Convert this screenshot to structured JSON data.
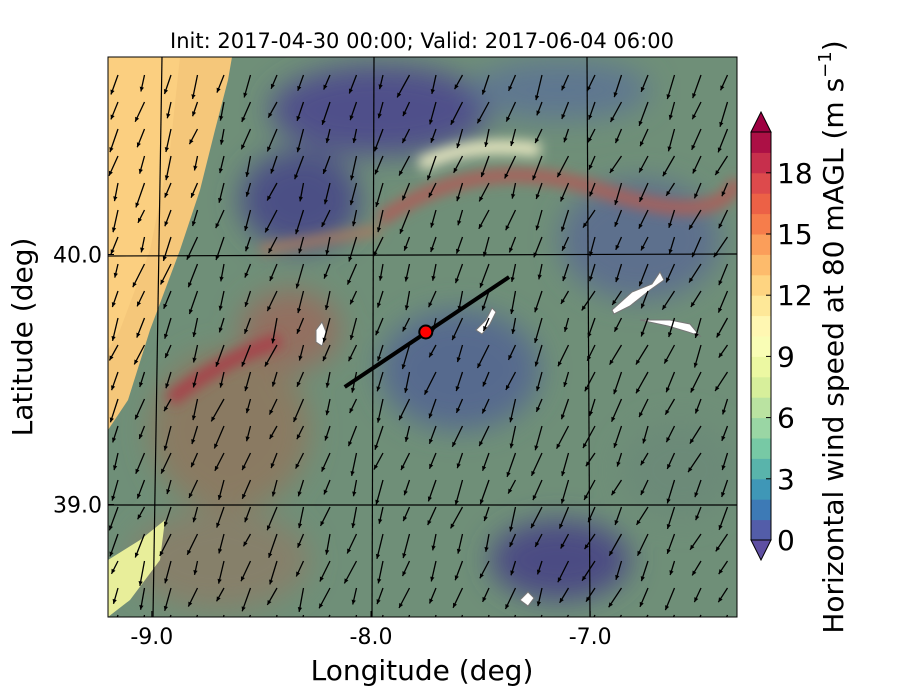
{
  "chart_data": {
    "type": "heatmap",
    "title": "Init: 2017-04-30 00:00; Valid: 2017-06-04 06:00",
    "xlabel": "Longitude (deg)",
    "ylabel": "Latitude (deg)",
    "xlim": [
      -9.2,
      -6.33
    ],
    "ylim": [
      38.55,
      40.79
    ],
    "xticks": [
      -9.0,
      -8.0,
      -7.0
    ],
    "xtick_labels": [
      "-9.0",
      "-8.0",
      "-7.0"
    ],
    "yticks": [
      39.0,
      40.0
    ],
    "ytick_labels": [
      "39.0",
      "40.0"
    ],
    "grid": true,
    "colorbar": {
      "label": "Horizontal wind speed at 80 mAGL (m s",
      "label_sup": "−1",
      "label_end": ")",
      "range": [
        0,
        20
      ],
      "levels": 20,
      "extend": "both",
      "colormap": "Spectral_r",
      "ticks": [
        0,
        3,
        6,
        9,
        12,
        15,
        18
      ],
      "tick_labels": [
        "0",
        "3",
        "6",
        "9",
        "12",
        "15",
        "18"
      ]
    },
    "transect": {
      "start": [
        -8.12,
        39.47
      ],
      "end": [
        -7.37,
        39.91
      ]
    },
    "site_marker": {
      "lon": -7.75,
      "lat": 39.69,
      "color": "#ff0000"
    },
    "wind_direction": "mostly from north-northwest (arrows pointing south-southeast)"
  }
}
